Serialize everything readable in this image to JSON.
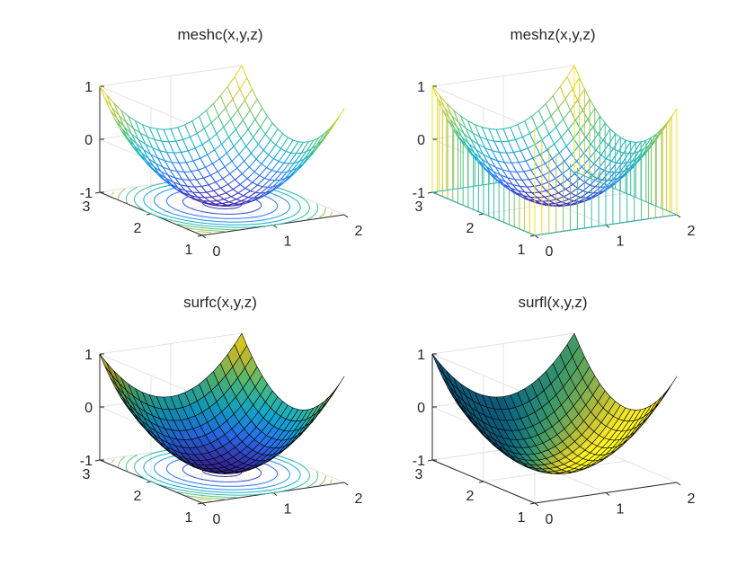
{
  "chart_data": [
    {
      "type": "mesh",
      "variant": "meshc",
      "title": "meshc(x,y,z)",
      "function": "z = (x-1)^2 + (y-2)^2 - 1",
      "x_range": [
        0,
        2
      ],
      "y_range": [
        1,
        3
      ],
      "z_range": [
        -1,
        1
      ],
      "grid_n": 21,
      "contour_levels": [
        -0.95,
        -0.8,
        -0.6,
        -0.4,
        -0.2,
        0,
        0.2,
        0.4,
        0.6,
        0.8
      ],
      "xticks": [
        "0",
        "1",
        "2"
      ],
      "yticks": [
        "1",
        "2",
        "3"
      ],
      "zticks": [
        "-1",
        "0",
        "1"
      ]
    },
    {
      "type": "mesh",
      "variant": "meshz",
      "title": "meshz(x,y,z)",
      "function": "z = (x-1)^2 + (y-2)^2 - 1",
      "x_range": [
        0,
        2
      ],
      "y_range": [
        1,
        3
      ],
      "z_range": [
        -1,
        1
      ],
      "grid_n": 21,
      "curtain_level": -1,
      "xticks": [
        "0",
        "1",
        "2"
      ],
      "yticks": [
        "1",
        "2",
        "3"
      ],
      "zticks": [
        "-1",
        "0",
        "1"
      ]
    },
    {
      "type": "surface",
      "variant": "surfc",
      "title": "surfc(x,y,z)",
      "function": "z = (x-1)^2 + (y-2)^2 - 1",
      "x_range": [
        0,
        2
      ],
      "y_range": [
        1,
        3
      ],
      "z_range": [
        -1,
        1
      ],
      "grid_n": 21,
      "contour_levels": [
        -0.95,
        -0.8,
        -0.6,
        -0.4,
        -0.2,
        0,
        0.2,
        0.4,
        0.6,
        0.8
      ],
      "xticks": [
        "0",
        "1",
        "2"
      ],
      "yticks": [
        "1",
        "2",
        "3"
      ],
      "zticks": [
        "-1",
        "0",
        "1"
      ]
    },
    {
      "type": "surface",
      "variant": "surfl",
      "title": "surfl(x,y,z)",
      "function": "z = (x-1)^2 + (y-2)^2 - 1",
      "x_range": [
        0,
        2
      ],
      "y_range": [
        1,
        3
      ],
      "z_range": [
        -1,
        1
      ],
      "grid_n": 21,
      "lighting": true,
      "xticks": [
        "0",
        "1",
        "2"
      ],
      "yticks": [
        "1",
        "2",
        "3"
      ],
      "zticks": [
        "-1",
        "0",
        "1"
      ]
    }
  ],
  "colors": {
    "parula": [
      "#3e26a8",
      "#2b74fd",
      "#12b0d3",
      "#4ec384",
      "#c4c63a",
      "#fbe518"
    ],
    "box": "#262626",
    "grid": "#e3e3e3",
    "edge": "#000000"
  }
}
